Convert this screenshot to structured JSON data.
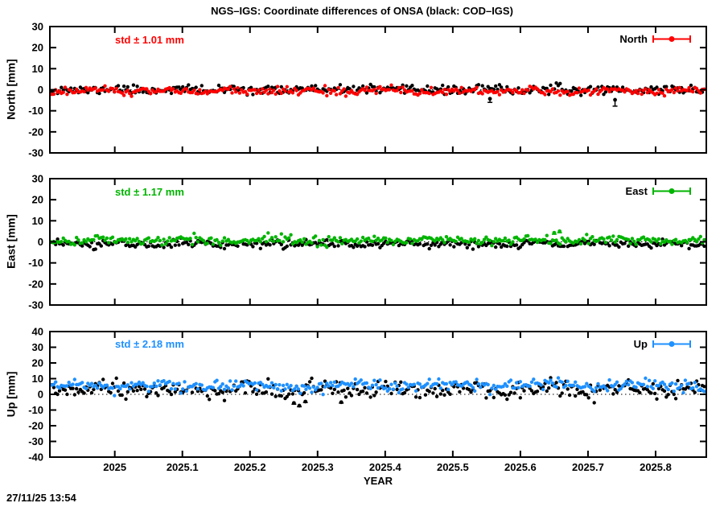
{
  "title": "NGS–IGS: Coordinate differences of ONSA (black: COD–IGS)",
  "timestamp": "27/11/25 13:54",
  "colors": {
    "north": "#ff0000",
    "east": "#00b400",
    "up": "#1e90ff",
    "reference_black": "#000000"
  },
  "x_axis": {
    "label": "YEAR",
    "range": [
      2024.904,
      2025.875
    ],
    "ticks": [
      {
        "value": 2025.0,
        "label": "2025"
      },
      {
        "value": 2025.1,
        "label": "2025.1"
      },
      {
        "value": 2025.2,
        "label": "2025.2"
      },
      {
        "value": 2025.3,
        "label": "2025.3"
      },
      {
        "value": 2025.4,
        "label": "2025.4"
      },
      {
        "value": 2025.5,
        "label": "2025.5"
      },
      {
        "value": 2025.6,
        "label": "2025.6"
      },
      {
        "value": 2025.7,
        "label": "2025.7"
      },
      {
        "value": 2025.8,
        "label": "2025.8"
      }
    ]
  },
  "chart_data": [
    {
      "type": "scatter",
      "panel": "North",
      "ylabel": "North [mm]",
      "ylim": [
        -30,
        30
      ],
      "ytick_step": 10,
      "zero_line": "dotted",
      "std_label": "std ± 1.01 mm",
      "legend_label": "North",
      "color": "#ff0000",
      "series": [
        {
          "name": "COD-IGS",
          "color": "#000000",
          "mean": 0.0,
          "std": 1.0,
          "n": 345,
          "seed": 11,
          "wander_amp": 0.45,
          "wander_freq": 11,
          "phase": 1.3,
          "synthetic_noise": true
        },
        {
          "name": "NGS-IGS",
          "color": "#ff0000",
          "mean": -0.6,
          "std": 0.95,
          "n": 345,
          "seed": 21,
          "wander_amp": 0.45,
          "wander_freq": 9,
          "phase": 4.0,
          "synthetic_noise": true
        }
      ],
      "outliers": [
        {
          "x": 2025.555,
          "y": -4.3,
          "ylow": -6.0,
          "color": "#000000"
        },
        {
          "x": 2025.74,
          "y": -4.8,
          "ylow": -7.8,
          "color": "#000000"
        }
      ]
    },
    {
      "type": "scatter",
      "panel": "East",
      "ylabel": "East [mm]",
      "ylim": [
        -30,
        30
      ],
      "ytick_step": 10,
      "zero_line": "dotted",
      "std_label": "std ± 1.17 mm",
      "legend_label": "East",
      "color": "#00b400",
      "series": [
        {
          "name": "COD-IGS",
          "color": "#000000",
          "mean": -1.0,
          "std": 0.9,
          "n": 345,
          "seed": 31,
          "wander_amp": 0.4,
          "wander_freq": 10,
          "phase": 0.7,
          "synthetic_noise": true
        },
        {
          "name": "NGS-IGS",
          "color": "#00b400",
          "mean": 0.8,
          "std": 1.0,
          "n": 345,
          "seed": 41,
          "wander_amp": 0.45,
          "wander_freq": 8,
          "phase": 2.2,
          "synthetic_noise": true
        }
      ],
      "outliers": [
        {
          "x": 2025.65,
          "y": 4.3,
          "ylow": 3.6,
          "color": "#00b400"
        },
        {
          "x": 2025.658,
          "y": 5.0,
          "ylow": 4.3,
          "color": "#00b400"
        }
      ]
    },
    {
      "type": "scatter",
      "panel": "Up",
      "ylabel": "Up [mm]",
      "ylim": [
        -40,
        40
      ],
      "ytick_step": 10,
      "zero_line": "dotted",
      "std_label": "std ± 2.18 mm",
      "legend_label": "Up",
      "color": "#1e90ff",
      "series": [
        {
          "name": "COD-IGS",
          "color": "#000000",
          "mean": 2.8,
          "std": 2.5,
          "n": 345,
          "seed": 51,
          "wander_amp": 1.6,
          "wander_freq": 9,
          "phase": 2.9,
          "synthetic_noise": true
        },
        {
          "name": "NGS-IGS",
          "color": "#1e90ff",
          "mean": 5.5,
          "std": 1.8,
          "n": 345,
          "seed": 61,
          "wander_amp": 1.0,
          "wander_freq": 7,
          "phase": 5.1,
          "synthetic_noise": true
        }
      ],
      "outliers": [
        {
          "x": 2025.265,
          "y": -5.5,
          "ylow": -6.3,
          "color": "#000000"
        },
        {
          "x": 2025.273,
          "y": -7.2,
          "ylow": -7.9,
          "color": "#000000"
        },
        {
          "x": 2025.282,
          "y": -4.6,
          "ylow": -5.2,
          "color": "#000000"
        },
        {
          "x": 2025.335,
          "y": -5.0,
          "ylow": -5.6,
          "color": "#000000"
        }
      ]
    }
  ]
}
